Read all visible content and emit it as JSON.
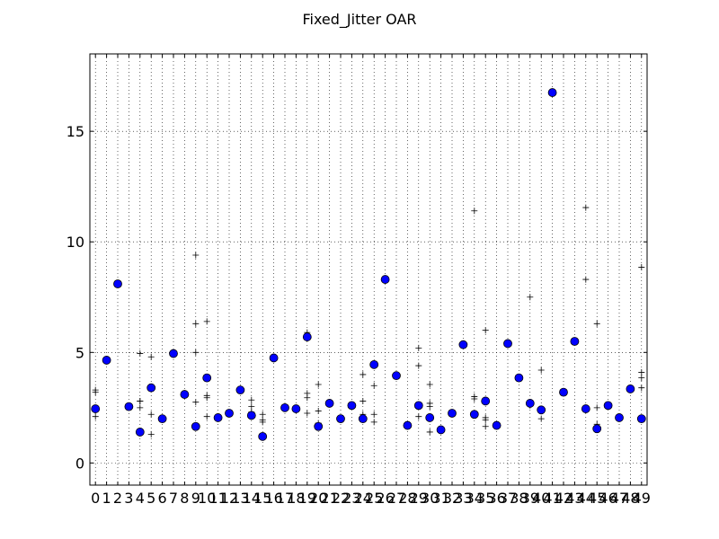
{
  "chart_data": {
    "type": "scatter",
    "title": "Fixed_Jitter OAR",
    "xlabel": "",
    "ylabel": "",
    "xlim": [
      -0.5,
      49.5
    ],
    "ylim": [
      -1,
      18.5
    ],
    "grid": true,
    "x_ticks": [
      "0",
      "1",
      "2",
      "3",
      "4",
      "5",
      "6",
      "7",
      "8",
      "9",
      "10",
      "11",
      "12",
      "13",
      "14",
      "15",
      "16",
      "17",
      "18",
      "19",
      "20",
      "21",
      "22",
      "23",
      "24",
      "25",
      "26",
      "27",
      "28",
      "29",
      "30",
      "31",
      "32",
      "33",
      "34",
      "35",
      "36",
      "37",
      "38",
      "39",
      "40",
      "41",
      "42",
      "43",
      "44",
      "45",
      "46",
      "47",
      "48",
      "49"
    ],
    "y_ticks": [
      0,
      5,
      10,
      15
    ],
    "colors": {
      "marker_fill": "#0000ff",
      "marker_edge": "#000000",
      "cross": "#000000",
      "grid": "#000000"
    },
    "series": [
      {
        "marker": "circle",
        "x": [
          0,
          1,
          2,
          3,
          4,
          5,
          6,
          7,
          8,
          9,
          10,
          11,
          12,
          13,
          14,
          15,
          16,
          17,
          18,
          19,
          20,
          21,
          22,
          23,
          24,
          25,
          26,
          27,
          28,
          29,
          30,
          31,
          32,
          33,
          34,
          35,
          36,
          37,
          38,
          39,
          40,
          41,
          42,
          43,
          44,
          45,
          46,
          47,
          48,
          49
        ],
        "values": [
          2.45,
          4.65,
          8.1,
          2.55,
          1.4,
          3.4,
          2.0,
          4.95,
          3.1,
          1.65,
          3.85,
          2.05,
          2.25,
          3.3,
          2.15,
          1.2,
          4.75,
          2.5,
          2.45,
          5.7,
          1.65,
          2.7,
          2.0,
          2.6,
          2.0,
          4.45,
          8.3,
          3.95,
          1.7,
          2.6,
          2.05,
          1.5,
          2.25,
          5.35,
          2.2,
          2.8,
          1.7,
          5.4,
          3.85,
          2.7,
          2.4,
          16.75,
          3.2,
          5.5,
          2.45,
          1.55,
          2.6,
          2.05,
          3.35,
          2.0
        ]
      },
      {
        "marker": "plus",
        "points": [
          [
            0,
            3.3
          ],
          [
            0,
            3.2
          ],
          [
            0,
            2.1
          ],
          [
            4,
            4.95
          ],
          [
            4,
            2.8
          ],
          [
            4,
            2.8
          ],
          [
            4,
            2.5
          ],
          [
            5,
            4.8
          ],
          [
            5,
            2.2
          ],
          [
            5,
            1.3
          ],
          [
            9,
            9.4
          ],
          [
            9,
            6.3
          ],
          [
            9,
            5.0
          ],
          [
            9,
            2.75
          ],
          [
            10,
            6.4
          ],
          [
            10,
            3.05
          ],
          [
            10,
            2.95
          ],
          [
            10,
            2.1
          ],
          [
            14,
            2.85
          ],
          [
            14,
            2.55
          ],
          [
            14,
            2.3
          ],
          [
            14,
            2.1
          ],
          [
            15,
            2.2
          ],
          [
            15,
            1.95
          ],
          [
            15,
            1.85
          ],
          [
            19,
            5.9
          ],
          [
            19,
            3.15
          ],
          [
            19,
            2.95
          ],
          [
            19,
            2.25
          ],
          [
            20,
            3.55
          ],
          [
            20,
            2.35
          ],
          [
            20,
            1.8
          ],
          [
            24,
            4.0
          ],
          [
            24,
            2.8
          ],
          [
            24,
            2.2
          ],
          [
            25,
            3.5
          ],
          [
            25,
            2.2
          ],
          [
            25,
            1.85
          ],
          [
            29,
            5.2
          ],
          [
            29,
            4.4
          ],
          [
            29,
            2.1
          ],
          [
            30,
            3.55
          ],
          [
            30,
            2.7
          ],
          [
            30,
            2.55
          ],
          [
            30,
            1.4
          ],
          [
            34,
            11.4
          ],
          [
            34,
            3.0
          ],
          [
            34,
            2.9
          ],
          [
            35,
            6.0
          ],
          [
            35,
            2.05
          ],
          [
            35,
            1.95
          ],
          [
            35,
            1.65
          ],
          [
            39,
            7.5
          ],
          [
            39,
            2.6
          ],
          [
            40,
            4.2
          ],
          [
            40,
            2.0
          ],
          [
            44,
            11.55
          ],
          [
            44,
            8.3
          ],
          [
            44,
            2.5
          ],
          [
            45,
            6.3
          ],
          [
            45,
            2.5
          ],
          [
            45,
            1.75
          ],
          [
            49,
            8.85
          ],
          [
            49,
            4.1
          ],
          [
            49,
            3.85
          ],
          [
            49,
            3.4
          ]
        ]
      }
    ]
  }
}
